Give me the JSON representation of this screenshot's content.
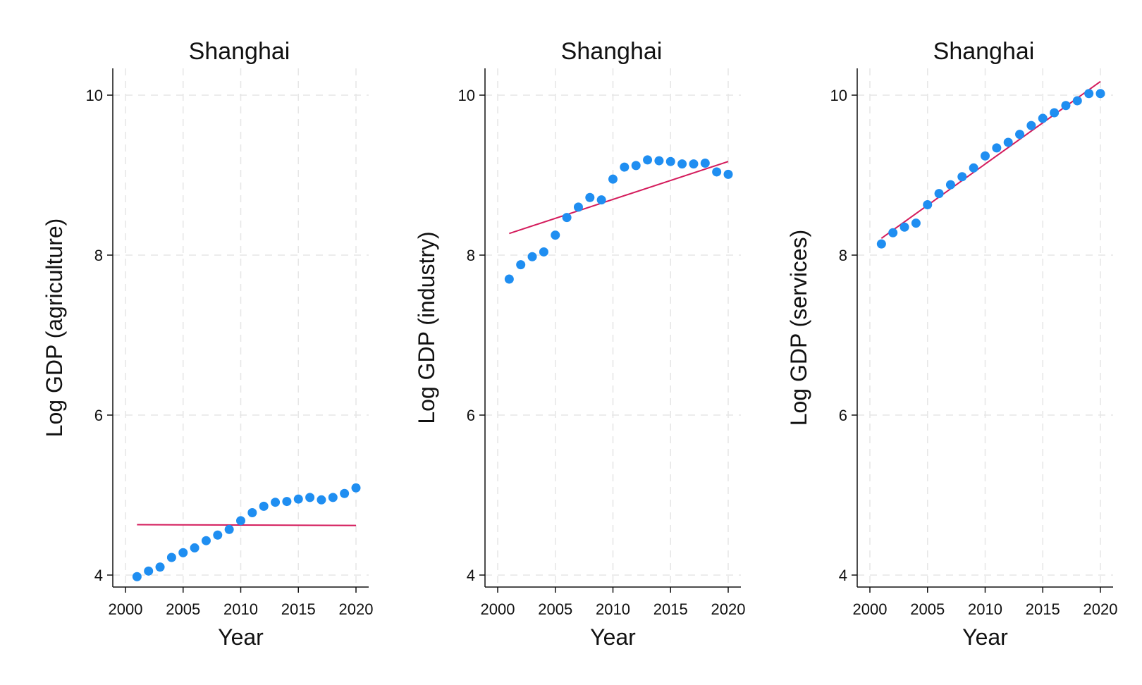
{
  "chart_data": [
    {
      "type": "scatter",
      "title": "Shanghai",
      "xlabel": "Year",
      "ylabel": "Log GDP (agriculture)",
      "xlim": [
        2000,
        2020
      ],
      "ylim": [
        4,
        10
      ],
      "xticks": [
        2000,
        2005,
        2010,
        2015,
        2020
      ],
      "yticks": [
        4,
        6,
        8,
        10
      ],
      "grid": true,
      "point_color": "#1f8ef1",
      "fit_color": "#d41c5c",
      "x": [
        2001,
        2002,
        2003,
        2004,
        2005,
        2006,
        2007,
        2008,
        2009,
        2010,
        2011,
        2012,
        2013,
        2014,
        2015,
        2016,
        2017,
        2018,
        2019,
        2020
      ],
      "y": [
        3.98,
        4.05,
        4.1,
        4.22,
        4.28,
        4.34,
        4.43,
        4.5,
        4.57,
        4.68,
        4.78,
        4.86,
        4.91,
        4.92,
        4.95,
        4.97,
        4.94,
        4.97,
        5.02,
        5.09
      ],
      "fit": {
        "x": [
          2001,
          2020
        ],
        "y": [
          4.63,
          4.62
        ]
      }
    },
    {
      "type": "scatter",
      "title": "Shanghai",
      "xlabel": "Year",
      "ylabel": "Log GDP (industry)",
      "xlim": [
        2000,
        2020
      ],
      "ylim": [
        4,
        10
      ],
      "xticks": [
        2000,
        2005,
        2010,
        2015,
        2020
      ],
      "yticks": [
        4,
        6,
        8,
        10
      ],
      "grid": true,
      "point_color": "#1f8ef1",
      "fit_color": "#d41c5c",
      "x": [
        2001,
        2002,
        2003,
        2004,
        2005,
        2006,
        2007,
        2008,
        2009,
        2010,
        2011,
        2012,
        2013,
        2014,
        2015,
        2016,
        2017,
        2018,
        2019,
        2020
      ],
      "y": [
        7.7,
        7.88,
        7.98,
        8.04,
        8.25,
        8.47,
        8.6,
        8.72,
        8.69,
        8.95,
        9.1,
        9.12,
        9.19,
        9.18,
        9.17,
        9.14,
        9.14,
        9.15,
        9.04,
        9.01
      ],
      "fit": {
        "x": [
          2001,
          2020
        ],
        "y": [
          8.27,
          9.17
        ]
      }
    },
    {
      "type": "scatter",
      "title": "Shanghai",
      "xlabel": "Year",
      "ylabel": "Log GDP (services)",
      "xlim": [
        2000,
        2020
      ],
      "ylim": [
        4,
        10
      ],
      "xticks": [
        2000,
        2005,
        2010,
        2015,
        2020
      ],
      "yticks": [
        4,
        6,
        8,
        10
      ],
      "grid": true,
      "point_color": "#1f8ef1",
      "fit_color": "#d41c5c",
      "x": [
        2001,
        2002,
        2003,
        2004,
        2005,
        2006,
        2007,
        2008,
        2009,
        2010,
        2011,
        2012,
        2013,
        2014,
        2015,
        2016,
        2017,
        2018,
        2019,
        2020
      ],
      "y": [
        8.14,
        8.28,
        8.35,
        8.4,
        8.63,
        8.77,
        8.88,
        8.98,
        9.09,
        9.24,
        9.34,
        9.41,
        9.51,
        9.62,
        9.71,
        9.78,
        9.87,
        9.93,
        10.02,
        10.02
      ],
      "fit": {
        "x": [
          2001,
          2020
        ],
        "y": [
          8.21,
          10.17
        ]
      }
    }
  ]
}
